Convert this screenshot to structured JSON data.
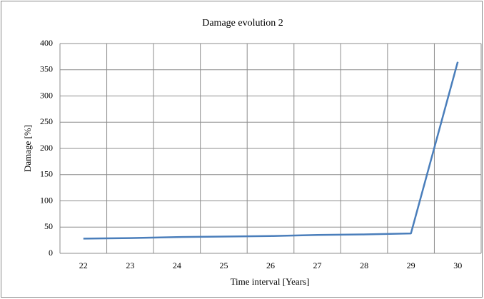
{
  "chart_data": {
    "type": "line",
    "title": "Damage evolution 2",
    "x_label": "Time interval [Years]",
    "y_label": "Damage [%]",
    "categories": [
      "22",
      "23",
      "24",
      "25",
      "26",
      "27",
      "28",
      "29",
      "30"
    ],
    "series": [
      {
        "name": "Damage",
        "color": "#4a7ebb",
        "values": [
          28,
          29,
          31,
          32,
          33,
          35,
          36,
          38,
          365
        ]
      }
    ],
    "ylim": [
      0,
      400
    ],
    "yticks": [
      0,
      50,
      100,
      150,
      200,
      250,
      300,
      350,
      400
    ],
    "grid": true
  }
}
